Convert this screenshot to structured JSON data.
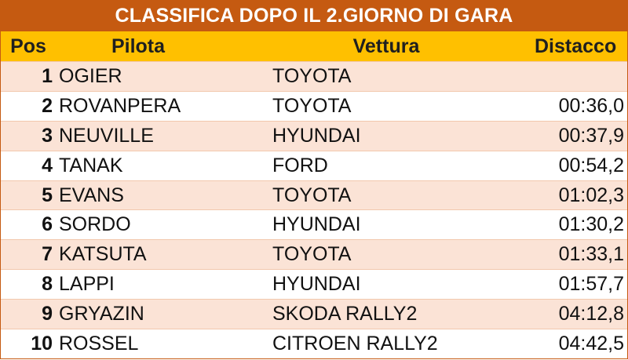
{
  "title": "CLASSIFICA DOPO IL 2.GIORNO DI GARA",
  "headers": {
    "pos": "Pos",
    "pilota": "Pilota",
    "vettura": "Vettura",
    "distacco": "Distacco"
  },
  "rows": [
    {
      "pos": "1",
      "pilota": "OGIER",
      "vettura": "TOYOTA",
      "distacco": ""
    },
    {
      "pos": "2",
      "pilota": "ROVANPERA",
      "vettura": "TOYOTA",
      "distacco": "00:36,0"
    },
    {
      "pos": "3",
      "pilota": "NEUVILLE",
      "vettura": "HYUNDAI",
      "distacco": "00:37,9"
    },
    {
      "pos": "4",
      "pilota": "TANAK",
      "vettura": "FORD",
      "distacco": "00:54,2"
    },
    {
      "pos": "5",
      "pilota": "EVANS",
      "vettura": "TOYOTA",
      "distacco": "01:02,3"
    },
    {
      "pos": "6",
      "pilota": "SORDO",
      "vettura": "HYUNDAI",
      "distacco": "01:30,2"
    },
    {
      "pos": "7",
      "pilota": "KATSUTA",
      "vettura": "TOYOTA",
      "distacco": "01:33,1"
    },
    {
      "pos": "8",
      "pilota": "LAPPI",
      "vettura": "HYUNDAI",
      "distacco": "01:57,7"
    },
    {
      "pos": "9",
      "pilota": "GRYAZIN",
      "vettura": "SKODA RALLY2",
      "distacco": "04:12,8"
    },
    {
      "pos": "10",
      "pilota": "ROSSEL",
      "vettura": "CITROEN RALLY2",
      "distacco": "04:42,5"
    }
  ],
  "colors": {
    "title_bg": "#c55a11",
    "header_bg": "#ffc000",
    "odd_row_bg": "#fbe3d6",
    "even_row_bg": "#ffffff"
  }
}
